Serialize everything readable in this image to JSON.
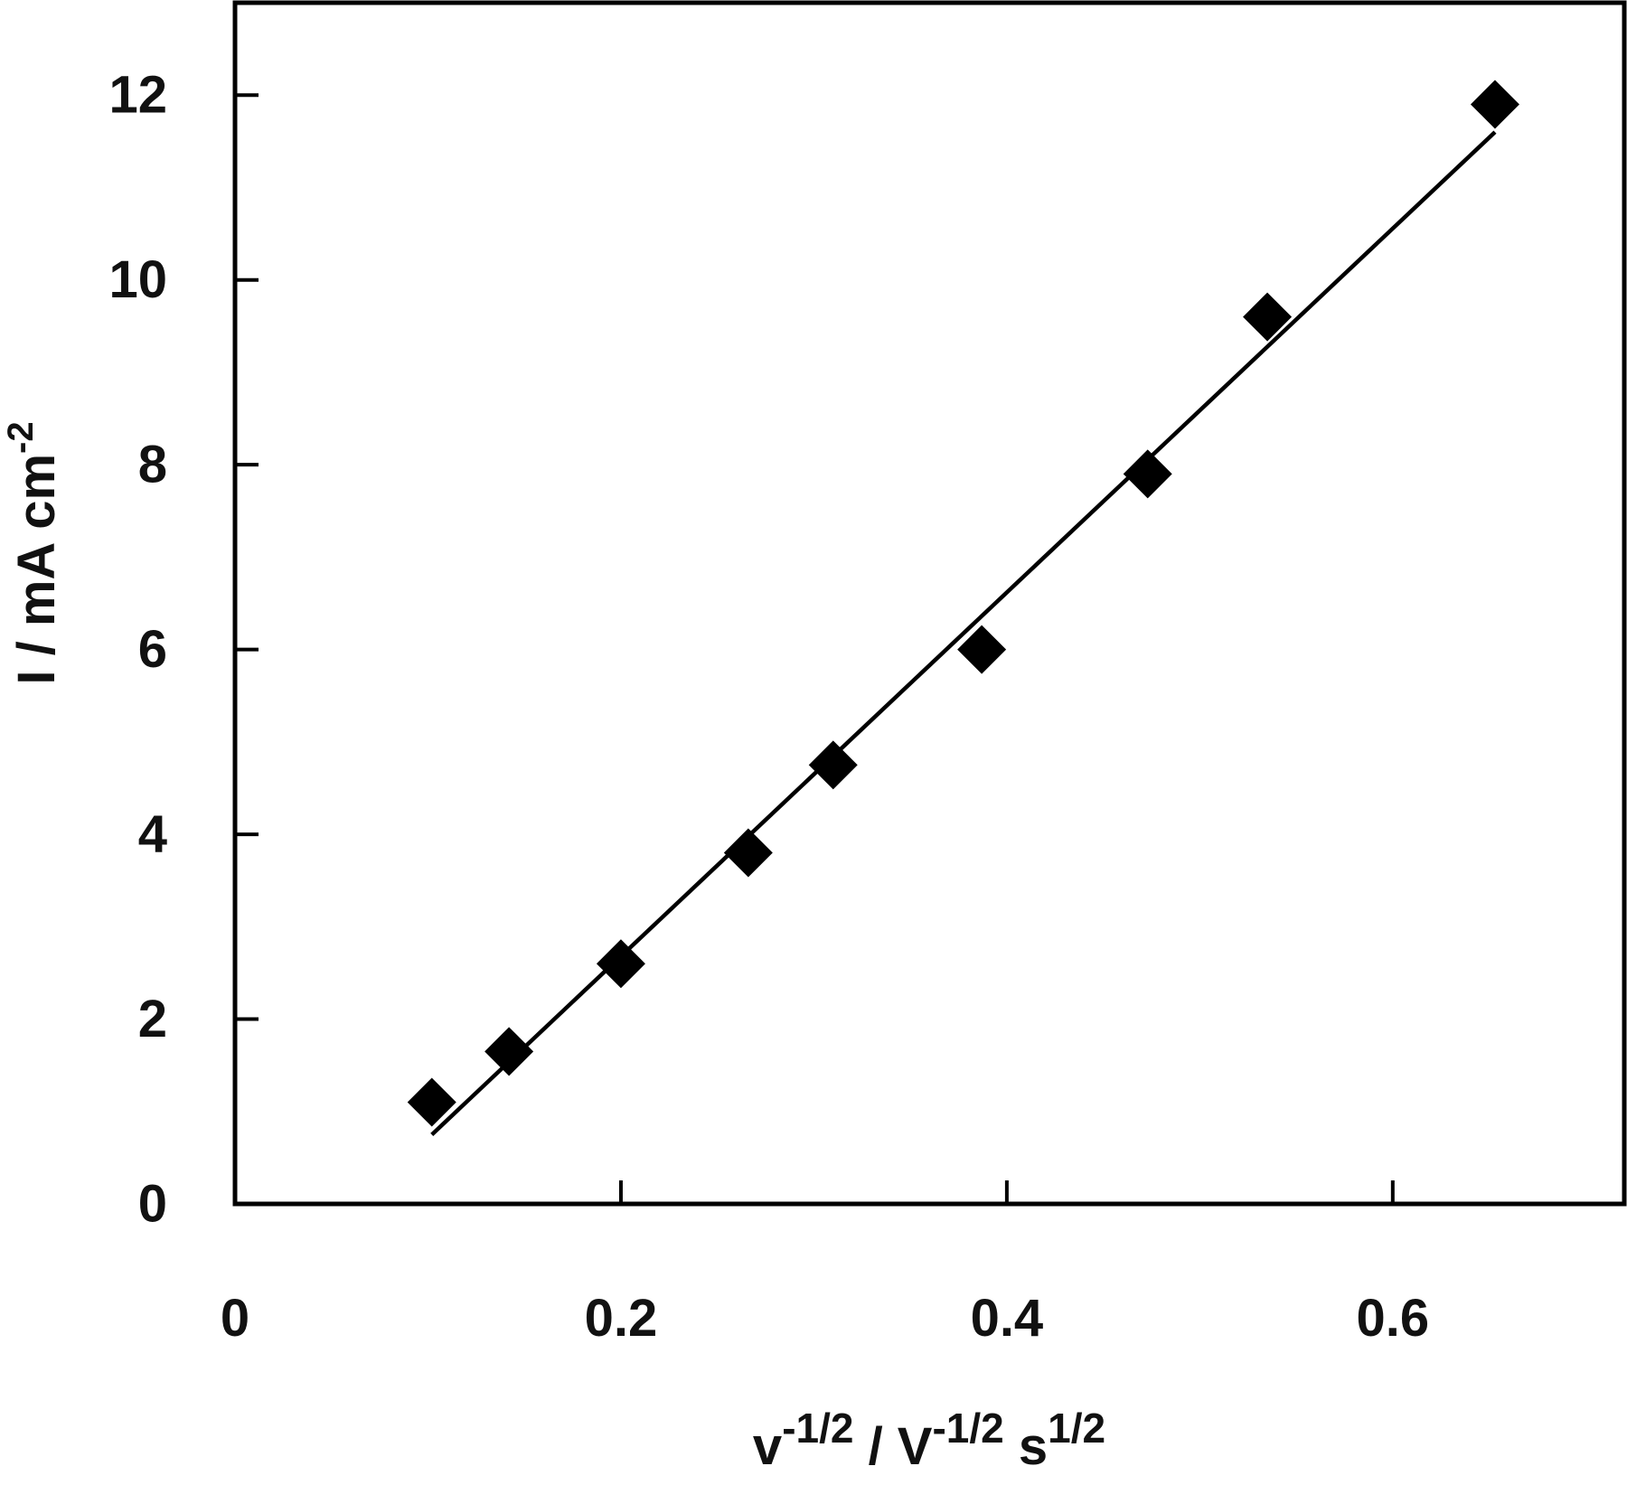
{
  "chart_data": {
    "type": "scatter",
    "xlabel": {
      "parts": [
        {
          "text": "v",
          "sup": false
        },
        {
          "text": "-1/2",
          "sup": true
        },
        {
          "text": " / V",
          "sup": false
        },
        {
          "text": "-1/2",
          "sup": true
        },
        {
          "text": " s",
          "sup": false
        },
        {
          "text": "1/2",
          "sup": true
        }
      ]
    },
    "ylabel": {
      "parts": [
        {
          "text": "I / mA cm",
          "sup": false
        },
        {
          "text": "-2",
          "sup": true
        }
      ]
    },
    "xlim": [
      0,
      0.72
    ],
    "ylim": [
      0,
      13
    ],
    "xticks": [
      0,
      0.2,
      0.4,
      0.6
    ],
    "xtick_labels": [
      "0",
      "0.2",
      "0.4",
      "0.6"
    ],
    "yticks": [
      0,
      2,
      4,
      6,
      8,
      10,
      12
    ],
    "ytick_labels": [
      "0",
      "2",
      "4",
      "6",
      "8",
      "10",
      "12"
    ],
    "grid": false,
    "legend": "none",
    "series": [
      {
        "marker": "diamond",
        "color": "#000000",
        "points": [
          {
            "x": 0.102,
            "y": 1.1
          },
          {
            "x": 0.142,
            "y": 1.65
          },
          {
            "x": 0.2,
            "y": 2.6
          },
          {
            "x": 0.266,
            "y": 3.8
          },
          {
            "x": 0.31,
            "y": 4.75
          },
          {
            "x": 0.387,
            "y": 6.0
          },
          {
            "x": 0.473,
            "y": 7.9
          },
          {
            "x": 0.535,
            "y": 9.6
          },
          {
            "x": 0.653,
            "y": 11.9
          }
        ]
      }
    ],
    "fit_line": {
      "color": "#000000",
      "points": [
        {
          "x": 0.102,
          "y": 0.75
        },
        {
          "x": 0.653,
          "y": 11.6
        }
      ]
    }
  }
}
